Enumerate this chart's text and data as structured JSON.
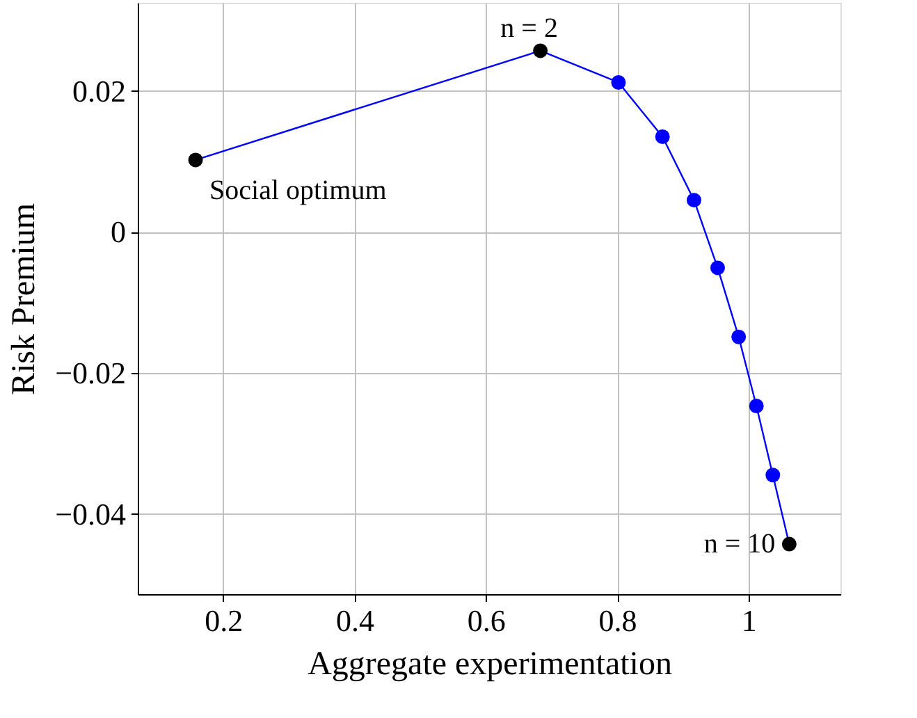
{
  "chart_data": {
    "type": "line",
    "xlabel": "Aggregate experimentation",
    "ylabel": "Risk Premium",
    "x": [
      0.158,
      0.683,
      0.802,
      0.869,
      0.917,
      0.953,
      0.985,
      1.012,
      1.037,
      1.062
    ],
    "series": [
      {
        "color": "#0000ff",
        "values": [
          0.0102,
          0.0257,
          0.0212,
          0.0135,
          0.0045,
          -0.0051,
          -0.0149,
          -0.0247,
          -0.0345,
          -0.0443
        ],
        "colors": [
          "#000000",
          "#000000",
          "#0000ff",
          "#0000ff",
          "#0000ff",
          "#0000ff",
          "#0000ff",
          "#0000ff",
          "#0000ff",
          "#000000"
        ]
      }
    ],
    "xlim": [
      0.07,
      1.14
    ],
    "ylim": [
      -0.0514,
      0.0325
    ],
    "xticks": [
      0.2,
      0.4,
      0.6,
      0.8,
      {
        "value": 1,
        "label": "1"
      }
    ],
    "yticks": [
      {
        "value": -0.04,
        "label": "−0.04"
      },
      {
        "value": -0.02,
        "label": "−0.02"
      },
      0,
      {
        "value": 0.02,
        "label": "0.02"
      }
    ],
    "annotations": [
      {
        "text": "n = 2",
        "x": 0.683,
        "y": 0.0257
      },
      {
        "text": "Social optimum",
        "x": 0.158,
        "y": 0.0102
      },
      {
        "text": "n = 10",
        "x": 1.062,
        "y": -0.0443
      }
    ],
    "grid": true,
    "marker": "circle",
    "line_style": "solid"
  }
}
